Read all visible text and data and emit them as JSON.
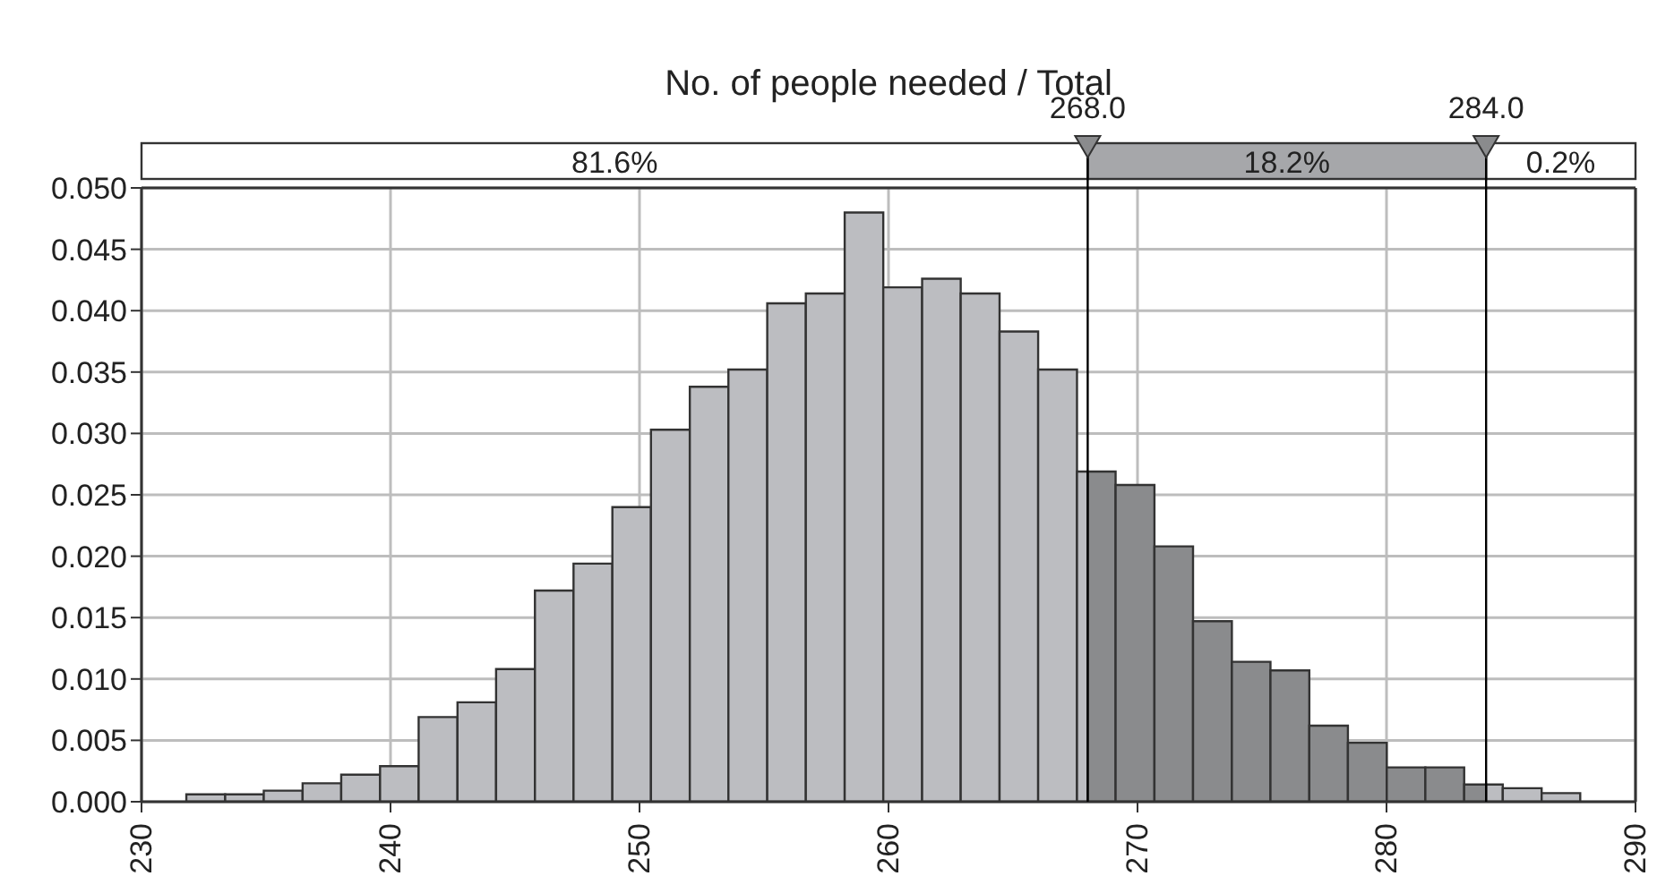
{
  "chart_data": {
    "type": "histogram",
    "title": "No. of people needed / Total",
    "bins": [
      231.8,
      233.36,
      234.91,
      236.47,
      238.02,
      239.58,
      241.13,
      242.69,
      244.24,
      245.8,
      247.35,
      248.91,
      250.46,
      252.02,
      253.57,
      255.13,
      256.68,
      258.24,
      259.79,
      261.35,
      262.9,
      264.46,
      266.01,
      267.57,
      268,
      269.12,
      270.68,
      272.23,
      273.79,
      275.34,
      276.9,
      278.45,
      280.01,
      281.56,
      283.12,
      284,
      284.67,
      286.23,
      287.78
    ],
    "values": [
      0.0006,
      0.0006,
      0.0009,
      0.0015,
      0.0022,
      0.0029,
      0.0069,
      0.0081,
      0.0108,
      0.0172,
      0.0194,
      0.024,
      0.0303,
      0.0338,
      0.0352,
      0.0406,
      0.0414,
      0.048,
      0.0419,
      0.0426,
      0.0414,
      0.0383,
      0.0352,
      0.0269,
      0.0269,
      0.0258,
      0.0208,
      0.0147,
      0.0114,
      0.0107,
      0.0062,
      0.0048,
      0.0028,
      0.0028,
      0.0014,
      0.0014,
      0.0011,
      0.0007
    ],
    "colors": [
      "#bcbdc1",
      "#bcbdc1",
      "#bcbdc1",
      "#bcbdc1",
      "#bcbdc1",
      "#bcbdc1",
      "#bcbdc1",
      "#bcbdc1",
      "#bcbdc1",
      "#bcbdc1",
      "#bcbdc1",
      "#bcbdc1",
      "#bcbdc1",
      "#bcbdc1",
      "#bcbdc1",
      "#bcbdc1",
      "#bcbdc1",
      "#bcbdc1",
      "#bcbdc1",
      "#bcbdc1",
      "#bcbdc1",
      "#bcbdc1",
      "#bcbdc1",
      "#bcbdc1",
      "#8a8b8d",
      "#8a8b8d",
      "#8a8b8d",
      "#8a8b8d",
      "#8a8b8d",
      "#8a8b8d",
      "#8a8b8d",
      "#8a8b8d",
      "#8a8b8d",
      "#8a8b8d",
      "#8a8b8d",
      "#bcbdc1",
      "#bcbdc1",
      "#bcbdc1"
    ],
    "xlim": [
      230,
      290
    ],
    "xticks": [
      230,
      240,
      250,
      260,
      270,
      280,
      290
    ],
    "ylim": [
      0,
      0.05
    ],
    "yticks": [
      {
        "value": 0,
        "label": "0.000"
      },
      {
        "value": 0.005,
        "label": "0.005"
      },
      {
        "value": 0.01,
        "label": "0.010"
      },
      {
        "value": 0.015,
        "label": "0.015"
      },
      {
        "value": 0.02,
        "label": "0.020"
      },
      {
        "value": 0.025,
        "label": "0.025"
      },
      {
        "value": 0.03,
        "label": "0.030"
      },
      {
        "value": 0.035,
        "label": "0.035"
      },
      {
        "value": 0.04,
        "label": "0.040"
      },
      {
        "value": 0.045,
        "label": "0.045"
      },
      {
        "value": 0.05,
        "label": "0.050"
      }
    ],
    "grid": true,
    "ref_lines": [
      {
        "axis": "x",
        "value": 268,
        "label": "268.0",
        "color": "#000000"
      },
      {
        "axis": "x",
        "value": 284,
        "label": "284.0",
        "color": "#000000"
      }
    ],
    "annotations": [
      "81.6%",
      "18.2%",
      "0.2%"
    ]
  }
}
